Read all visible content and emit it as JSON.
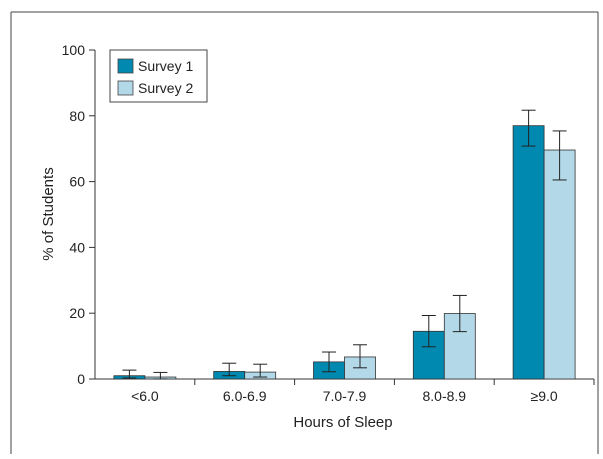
{
  "chart_data": {
    "type": "bar",
    "title": "",
    "xlabel": "Hours of Sleep",
    "ylabel": "% of Students",
    "ylim": [
      0,
      100
    ],
    "yticks": [
      "0",
      "20",
      "40",
      "60",
      "80",
      "100"
    ],
    "categories": [
      "<6.0",
      "6.0-6.9",
      "7.0-7.9",
      "8.0-8.9",
      "≥9.0"
    ],
    "series": [
      {
        "name": "Survey 1",
        "color": "#0089b0",
        "values": [
          1.0,
          2.3,
          5.2,
          14.5,
          77.0
        ],
        "error_low": [
          0.3,
          1.0,
          2.2,
          9.8,
          70.8
        ],
        "error_high": [
          2.7,
          4.8,
          8.2,
          19.3,
          81.7
        ]
      },
      {
        "name": "Survey 2",
        "color": "#b3d8e8",
        "values": [
          0.6,
          2.1,
          6.7,
          19.9,
          69.6
        ],
        "error_low": [
          0.0,
          0.6,
          3.4,
          14.4,
          60.5
        ],
        "error_high": [
          2.0,
          4.5,
          10.4,
          25.4,
          75.4
        ]
      }
    ],
    "legend": {
      "placement": "top-left"
    },
    "grid": false
  }
}
